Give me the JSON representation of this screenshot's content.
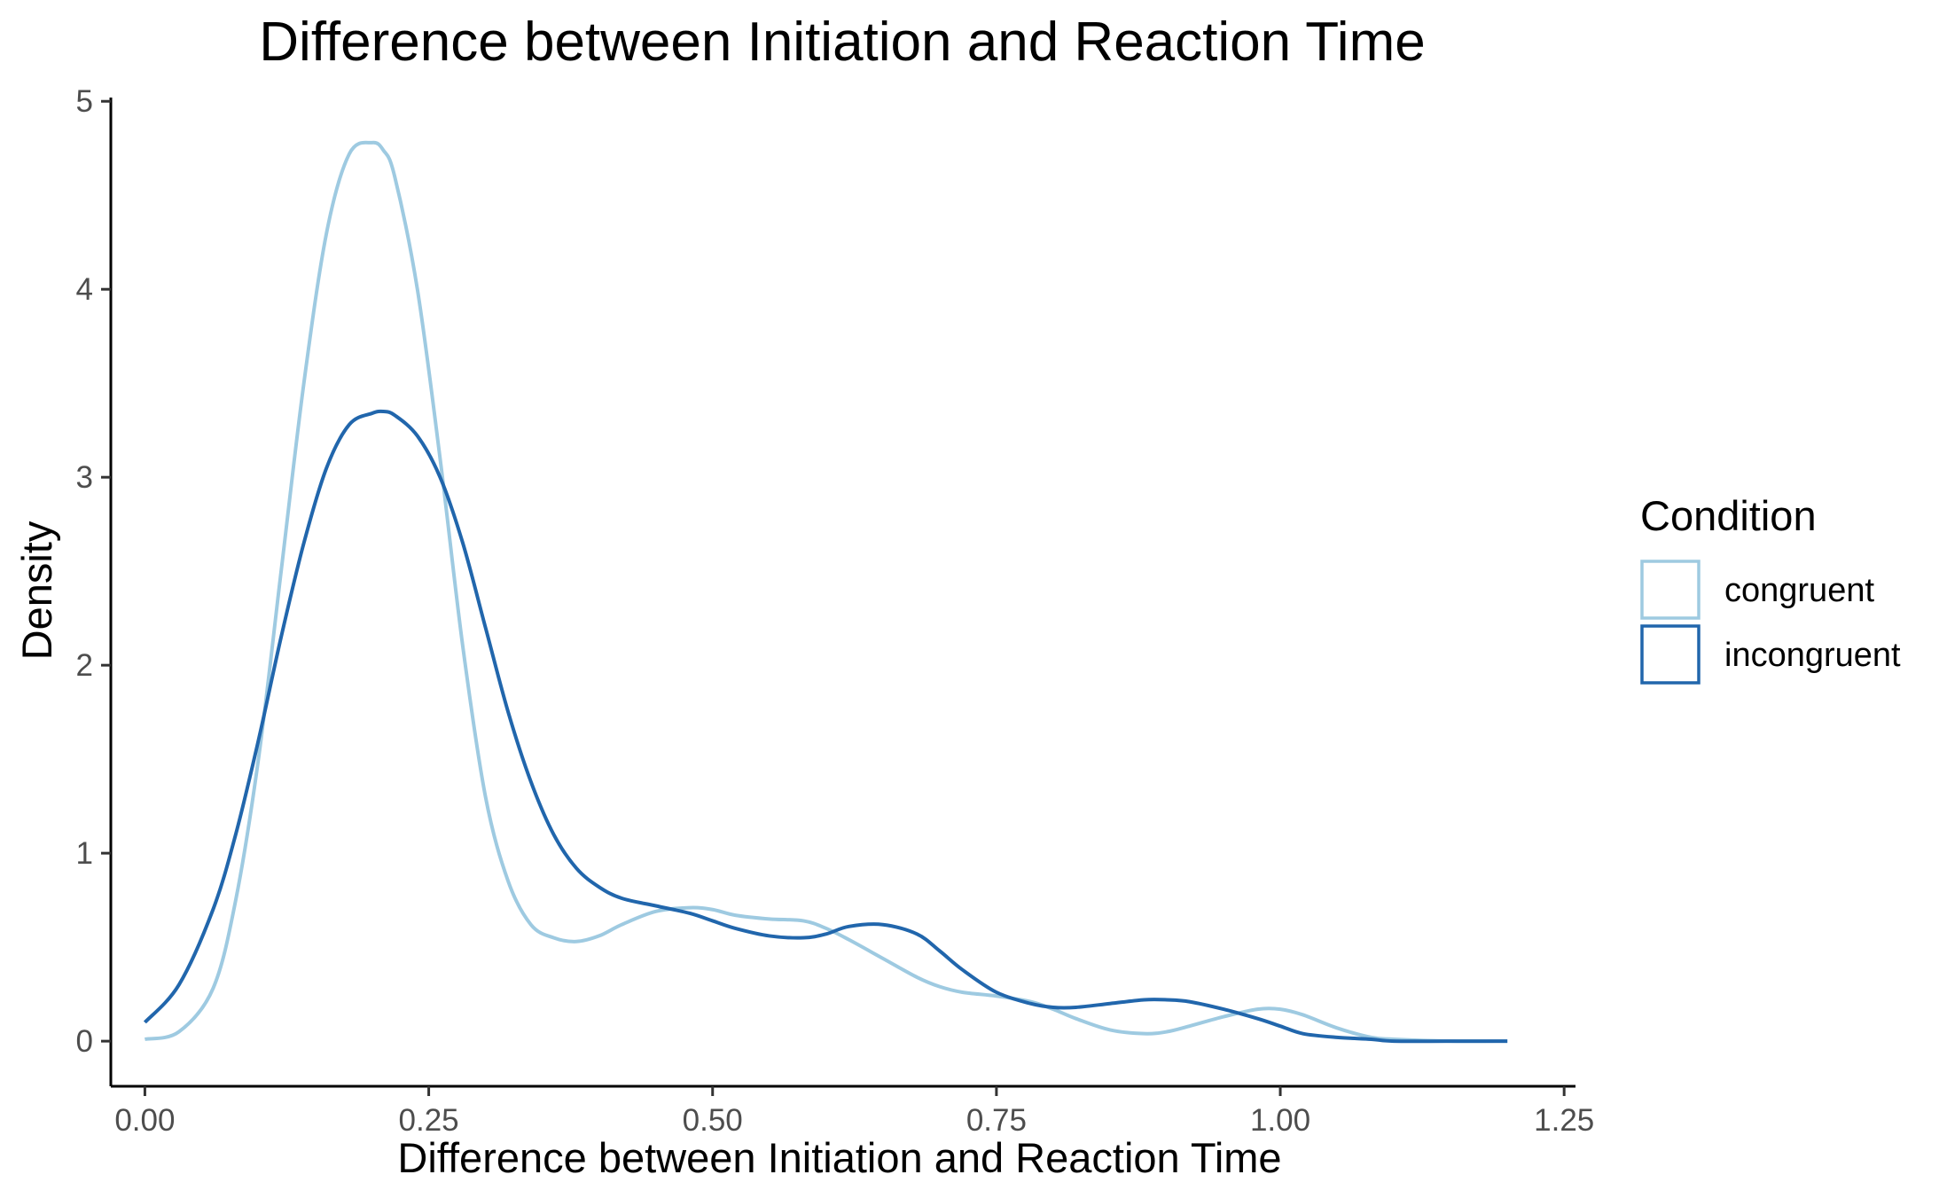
{
  "chart_data": {
    "type": "line",
    "title": "Difference between Initiation and Reaction Time",
    "xlabel": "Difference between Initiation and Reaction Time",
    "ylabel": "Density",
    "xlim": [
      -0.03,
      1.26
    ],
    "ylim": [
      -0.24,
      5.02
    ],
    "x_ticks": [
      0.0,
      0.25,
      0.5,
      0.75,
      1.0,
      1.25
    ],
    "x_tick_labels": [
      "0.00",
      "0.25",
      "0.50",
      "0.75",
      "1.00",
      "1.25"
    ],
    "y_ticks": [
      0,
      1,
      2,
      3,
      4,
      5
    ],
    "y_tick_labels": [
      "0",
      "1",
      "2",
      "3",
      "4",
      "5"
    ],
    "grid": false,
    "legend": {
      "title": "Condition",
      "placement": "right"
    },
    "series": [
      {
        "name": "congruent",
        "color": "#9ecae1",
        "x": [
          0.0,
          0.03,
          0.06,
          0.08,
          0.1,
          0.12,
          0.14,
          0.16,
          0.18,
          0.2,
          0.21,
          0.22,
          0.24,
          0.26,
          0.28,
          0.3,
          0.32,
          0.34,
          0.36,
          0.38,
          0.4,
          0.42,
          0.45,
          0.48,
          0.5,
          0.52,
          0.55,
          0.58,
          0.6,
          0.62,
          0.65,
          0.68,
          0.7,
          0.72,
          0.75,
          0.78,
          0.8,
          0.82,
          0.85,
          0.88,
          0.9,
          0.92,
          0.95,
          0.98,
          1.0,
          1.02,
          1.05,
          1.08,
          1.1,
          1.15,
          1.2
        ],
        "y": [
          0.01,
          0.05,
          0.28,
          0.75,
          1.5,
          2.5,
          3.5,
          4.3,
          4.72,
          4.78,
          4.74,
          4.6,
          4.0,
          3.1,
          2.1,
          1.3,
          0.85,
          0.62,
          0.55,
          0.53,
          0.56,
          0.62,
          0.69,
          0.71,
          0.7,
          0.67,
          0.65,
          0.64,
          0.6,
          0.54,
          0.44,
          0.34,
          0.29,
          0.26,
          0.24,
          0.21,
          0.17,
          0.12,
          0.06,
          0.04,
          0.05,
          0.08,
          0.13,
          0.17,
          0.17,
          0.14,
          0.07,
          0.02,
          0.01,
          0.0,
          0.0
        ]
      },
      {
        "name": "incongruent",
        "color": "#2166ac",
        "x": [
          0.0,
          0.03,
          0.06,
          0.08,
          0.1,
          0.12,
          0.14,
          0.16,
          0.18,
          0.2,
          0.21,
          0.22,
          0.24,
          0.26,
          0.28,
          0.3,
          0.32,
          0.34,
          0.36,
          0.38,
          0.4,
          0.42,
          0.45,
          0.48,
          0.5,
          0.52,
          0.55,
          0.58,
          0.6,
          0.62,
          0.65,
          0.68,
          0.7,
          0.72,
          0.75,
          0.78,
          0.8,
          0.82,
          0.85,
          0.88,
          0.9,
          0.92,
          0.95,
          0.98,
          1.0,
          1.02,
          1.05,
          1.08,
          1.1,
          1.15,
          1.2
        ],
        "y": [
          0.1,
          0.3,
          0.7,
          1.1,
          1.6,
          2.15,
          2.65,
          3.05,
          3.28,
          3.34,
          3.35,
          3.33,
          3.22,
          3.0,
          2.65,
          2.2,
          1.75,
          1.38,
          1.1,
          0.92,
          0.82,
          0.76,
          0.72,
          0.68,
          0.64,
          0.6,
          0.56,
          0.55,
          0.57,
          0.61,
          0.62,
          0.57,
          0.48,
          0.38,
          0.26,
          0.2,
          0.18,
          0.18,
          0.2,
          0.22,
          0.22,
          0.21,
          0.17,
          0.12,
          0.08,
          0.04,
          0.02,
          0.01,
          0.0,
          0.0,
          0.0
        ]
      }
    ]
  }
}
